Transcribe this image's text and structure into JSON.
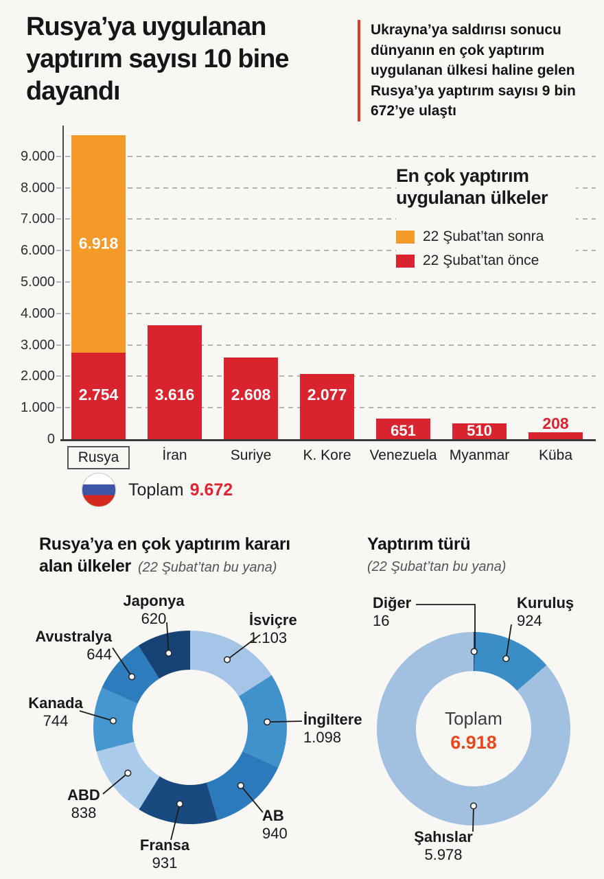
{
  "header": {
    "title": "Rusya’ya uygulanan yaptırım sayısı 10 bine dayandı",
    "callout": "Ukrayna’ya saldırısı sonucu dünyanın en çok yaptırım uygulanan ülkesi haline gelen Rusya’ya yaptırım sayısı 9 bin 672’ye ulaştı",
    "callout_accent_color": "#e23a2a"
  },
  "chart_data": [
    {
      "type": "bar",
      "title": "En çok yaptırım uygulanan ülkeler",
      "legend": [
        {
          "label": "22 Şubat’tan sonra",
          "color": "#f39a28"
        },
        {
          "label": "22 Şubat’tan önce",
          "color": "#d9232e"
        }
      ],
      "ylim": [
        0,
        9672
      ],
      "y_ticks": [
        "9.000",
        "8.000",
        "7.000",
        "6.000",
        "5.000",
        "4.000",
        "3.000",
        "2.000",
        "1.000",
        "0"
      ],
      "bars": [
        {
          "label": "Rusya",
          "before": 2754,
          "before_text": "2.754",
          "after": 6918,
          "after_text": "6.918",
          "boxed": true
        },
        {
          "label": "İran",
          "before": 3616,
          "before_text": "3.616"
        },
        {
          "label": "Suriye",
          "before": 2608,
          "before_text": "2.608"
        },
        {
          "label": "K. Kore",
          "before": 2077,
          "before_text": "2.077"
        },
        {
          "label": "Venezuela",
          "before": 651,
          "before_text": "651"
        },
        {
          "label": "Myanmar",
          "before": 510,
          "before_text": "510"
        },
        {
          "label": "Küba",
          "before": 208,
          "before_text": "208",
          "label_outside": true
        }
      ],
      "total": {
        "label": "Toplam",
        "value": "9.672",
        "value_color": "#de2430",
        "flag": {
          "top": "#ffffff",
          "middle": "#3d57a6",
          "bottom": "#d5281f"
        }
      }
    },
    {
      "type": "donut",
      "title_lines": [
        "Rusya’ya en çok yaptırım kararı",
        "alan ülkeler"
      ],
      "subtitle": "(22 Şubat’tan bu yana)",
      "slices": [
        {
          "name": "İsviçre",
          "value": 1103,
          "text": "1.103",
          "color": "#a4c5e5"
        },
        {
          "name": "İngiltere",
          "value": 1098,
          "text": "1.098",
          "color": "#4191ca"
        },
        {
          "name": "AB",
          "value": 940,
          "text": "940",
          "color": "#2b7abc"
        },
        {
          "name": "Fransa",
          "value": 931,
          "text": "931",
          "color": "#194a7f"
        },
        {
          "name": "ABD",
          "value": 838,
          "text": "838",
          "color": "#abcbea"
        },
        {
          "name": "Kanada",
          "value": 744,
          "text": "744",
          "color": "#4697d1"
        },
        {
          "name": "Avustralya",
          "value": 644,
          "text": "644",
          "color": "#2d7cbd"
        },
        {
          "name": "Japonya",
          "value": 620,
          "text": "620",
          "color": "#164374"
        }
      ]
    },
    {
      "type": "donut",
      "title": "Yaptırım türü",
      "subtitle": "(22 Şubat’tan bu yana)",
      "slices": [
        {
          "name": "Diğer",
          "value": 16,
          "text": "16",
          "color": "#1c4c80"
        },
        {
          "name": "Kuruluş",
          "value": 924,
          "text": "924",
          "color": "#3b8dc6"
        },
        {
          "name": "Şahıslar",
          "value": 5978,
          "text": "5.978",
          "color": "#a2c1e1"
        }
      ],
      "center": {
        "label": "Toplam",
        "value": "6.918",
        "value_color": "#e8481b"
      }
    }
  ]
}
